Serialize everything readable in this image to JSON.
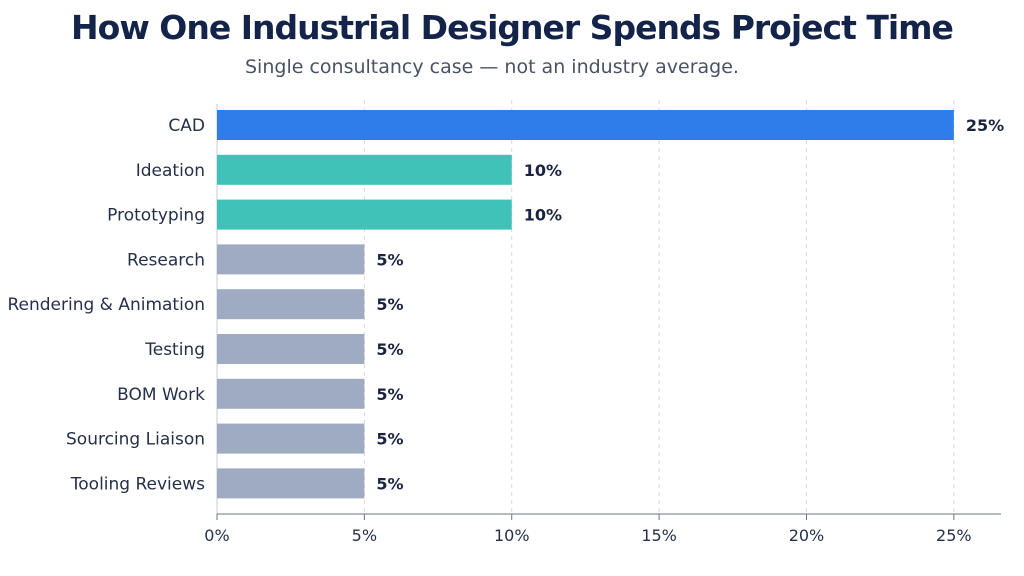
{
  "chart_data": {
    "type": "bar",
    "orientation": "horizontal",
    "title": "How One Industrial Designer Spends Project Time",
    "subtitle": "Single consultancy case — not an industry average.",
    "categories": [
      "CAD",
      "Ideation",
      "Prototyping",
      "Research",
      "Rendering & Animation",
      "Testing",
      "BOM Work",
      "Sourcing Liaison",
      "Tooling Reviews"
    ],
    "values": [
      25,
      10,
      10,
      5,
      5,
      5,
      5,
      5,
      5
    ],
    "value_labels": [
      "25%",
      "10%",
      "10%",
      "5%",
      "5%",
      "5%",
      "5%",
      "5%",
      "5%"
    ],
    "colors": [
      "#2f7de8",
      "#40c2b9",
      "#40c2b9",
      "#9eabc0",
      "#9eabc0",
      "#9eabc0",
      "#9eabc0",
      "#9eabc0",
      "#9eabc0"
    ],
    "xlim": [
      0,
      26.6
    ],
    "xticks": [
      0,
      5,
      10,
      15,
      20,
      25
    ],
    "xtick_labels": [
      "0%",
      "5%",
      "10%",
      "15%",
      "20%",
      "25%"
    ],
    "grid": "vertical dashed",
    "legend": "none"
  }
}
